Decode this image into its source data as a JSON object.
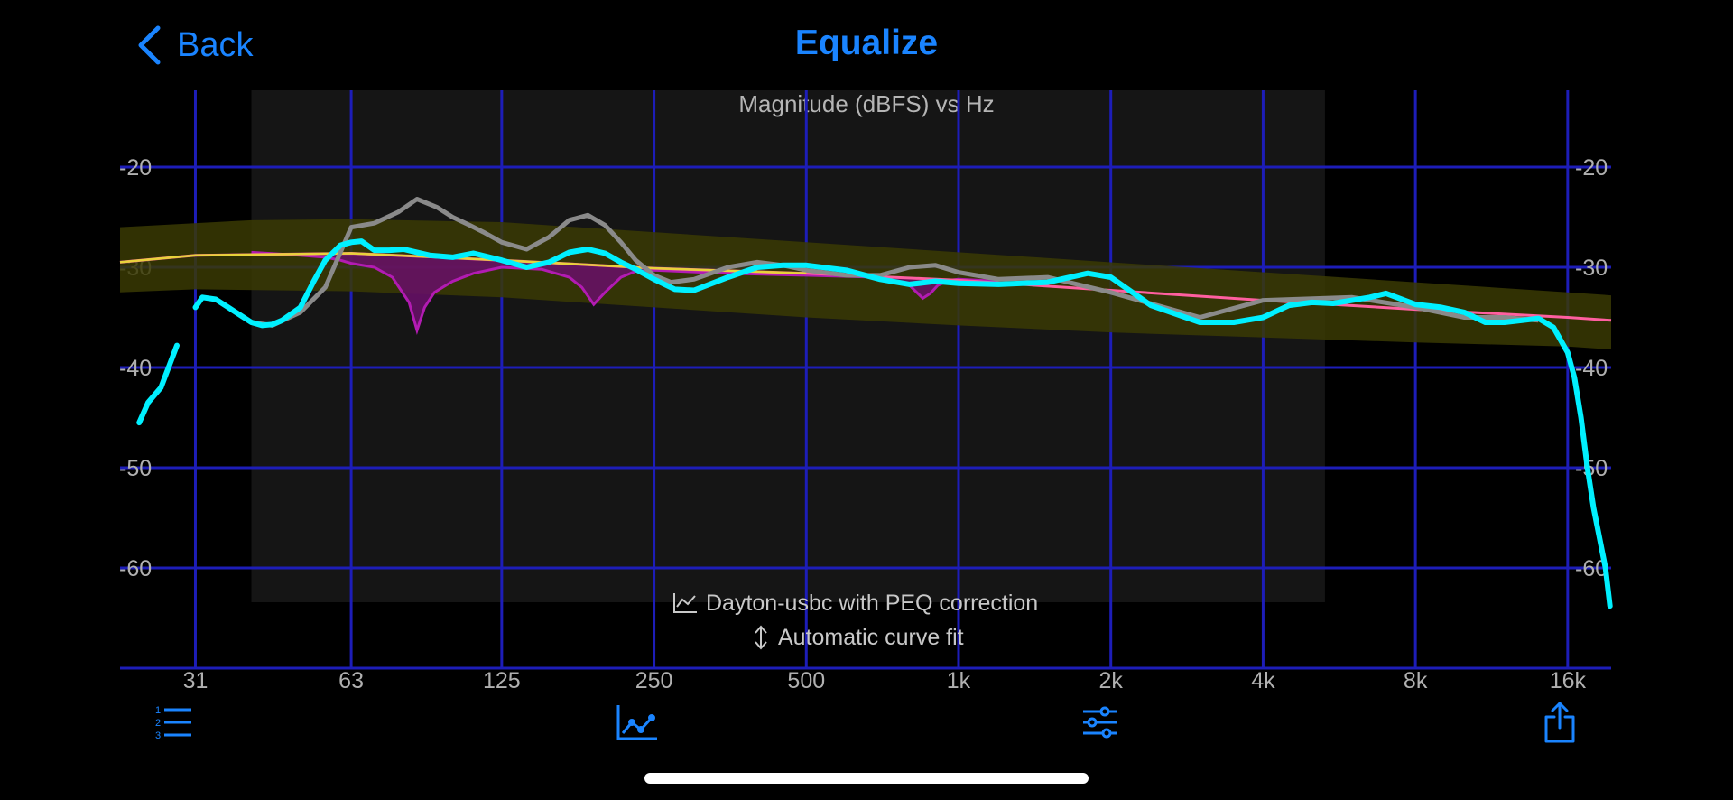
{
  "nav": {
    "back_label": "Back",
    "title": "Equalize"
  },
  "colors": {
    "accent": "#1a84ff",
    "grid": "#1d1db8",
    "band": "#3a3a04",
    "target": "#ff5fa0",
    "target_upper": "#e8d23a",
    "measurement": "#00f0ff",
    "uncorrected": "#8a8a8a",
    "correction": "#b21bb2"
  },
  "chart_data": {
    "type": "line",
    "title": "Magnitude (dBFS) vs Hz",
    "xscale": "log",
    "xlim": [
      22,
      19500
    ],
    "ylim": [
      -70,
      -12
    ],
    "y_ticks": [
      -20,
      -30,
      -40,
      -50,
      -60
    ],
    "y_tick_labels": [
      "-20",
      "-30",
      "-40",
      "-50",
      "-60"
    ],
    "x_ticks": [
      31,
      63,
      125,
      250,
      500,
      1000,
      2000,
      4000,
      8000,
      16000
    ],
    "x_tick_labels": [
      "31",
      "63",
      "125",
      "250",
      "500",
      "1k",
      "2k",
      "4k",
      "8k",
      "16k"
    ],
    "shaded_range_hz": [
      40,
      5300
    ],
    "legend": {
      "line1": "Dayton-usbc with PEQ correction",
      "line2": "Automatic curve fit",
      "position": "bottom-center"
    },
    "series": [
      {
        "key": "target",
        "x": [
          22,
          31,
          63,
          125,
          250,
          500,
          1000,
          2000,
          4000,
          8000,
          16000,
          19500
        ],
        "y": [
          -29.5,
          -28.8,
          -28.6,
          -29.3,
          -30.1,
          -30.6,
          -31.3,
          -32.3,
          -33.3,
          -34.2,
          -35.0,
          -35.3
        ]
      },
      {
        "key": "band_upper",
        "x": [
          22,
          40,
          63,
          125,
          250,
          500,
          1000,
          2000,
          4000,
          8000,
          16000,
          19500
        ],
        "y": [
          -26.0,
          -25.3,
          -25.2,
          -25.5,
          -26.5,
          -27.5,
          -28.5,
          -29.5,
          -30.5,
          -31.5,
          -32.5,
          -32.8
        ]
      },
      {
        "key": "band_lower",
        "x": [
          22,
          31,
          63,
          125,
          250,
          500,
          1000,
          2000,
          4000,
          8000,
          16000,
          19500
        ],
        "y": [
          -32.5,
          -32.2,
          -32.4,
          -33.0,
          -34.0,
          -35.0,
          -35.8,
          -36.5,
          -37.0,
          -37.5,
          -37.9,
          -38.2
        ]
      },
      {
        "key": "uncorrected",
        "x": [
          40,
          44,
          50,
          56,
          60,
          63,
          70,
          78,
          85,
          93,
          100,
          108,
          115,
          125,
          140,
          155,
          170,
          185,
          200,
          215,
          230,
          250,
          270,
          300,
          350,
          400,
          450,
          500,
          600,
          700,
          800,
          900,
          1000,
          1200,
          1500,
          2000,
          3000,
          4000,
          6000,
          8000,
          10000,
          12000,
          14000
        ],
        "y": [
          -35.5,
          -35.8,
          -34.5,
          -32.0,
          -28.5,
          -26.0,
          -25.6,
          -24.5,
          -23.2,
          -24.0,
          -25.0,
          -25.8,
          -26.5,
          -27.5,
          -28.2,
          -27.0,
          -25.3,
          -24.8,
          -25.8,
          -27.5,
          -29.3,
          -30.8,
          -31.5,
          -31.2,
          -30.0,
          -29.5,
          -29.8,
          -30.3,
          -30.8,
          -30.8,
          -30.0,
          -29.8,
          -30.5,
          -31.2,
          -31.0,
          -32.5,
          -35.0,
          -33.3,
          -33.0,
          -34.0,
          -35.0,
          -35.0,
          -35.3
        ]
      },
      {
        "key": "correction",
        "x": [
          40,
          50,
          56,
          60,
          63,
          70,
          76,
          82,
          85,
          88,
          92,
          100,
          110,
          125,
          150,
          170,
          180,
          190,
          200,
          215,
          230,
          250,
          350,
          500,
          700,
          800,
          850,
          880,
          910,
          960,
          1000,
          1200
        ],
        "y": [
          -28.5,
          -28.8,
          -29.0,
          -29.3,
          -29.6,
          -30.0,
          -31.0,
          -33.5,
          -36.3,
          -34.0,
          -32.5,
          -31.4,
          -30.6,
          -30.0,
          -30.2,
          -31.0,
          -32.0,
          -33.7,
          -32.5,
          -31.0,
          -30.4,
          -30.3,
          -30.6,
          -30.8,
          -31.0,
          -31.8,
          -33.1,
          -32.6,
          -31.8,
          -31.3,
          -31.2,
          -31.4
        ]
      },
      {
        "key": "measurement_low",
        "x": [
          24,
          25,
          26.5,
          28.5
        ],
        "y": [
          -45.5,
          -43.5,
          -42.0,
          -37.8
        ]
      },
      {
        "key": "measurement",
        "x": [
          31,
          32,
          34,
          36,
          40,
          42,
          44,
          46,
          50,
          53,
          56,
          60,
          63,
          66,
          70,
          75,
          80,
          90,
          100,
          110,
          125,
          140,
          155,
          170,
          185,
          200,
          215,
          230,
          250,
          275,
          300,
          350,
          400,
          450,
          500,
          600,
          700,
          800,
          900,
          1000,
          1200,
          1500,
          1800,
          2000,
          2400,
          3000,
          3500,
          4000,
          4500,
          5000,
          5500,
          6000,
          6500,
          7000,
          8000,
          9000,
          10000,
          11000,
          12000,
          13000,
          14000,
          15000,
          16000,
          16500,
          17000,
          17500,
          18000,
          19000,
          19400
        ],
        "y": [
          -34.0,
          -33.0,
          -33.2,
          -34.0,
          -35.5,
          -35.8,
          -35.7,
          -35.3,
          -34.0,
          -31.5,
          -29.3,
          -27.8,
          -27.5,
          -27.4,
          -28.3,
          -28.3,
          -28.2,
          -28.8,
          -29.0,
          -28.6,
          -29.3,
          -30.0,
          -29.5,
          -28.5,
          -28.2,
          -28.6,
          -29.5,
          -30.2,
          -31.2,
          -32.2,
          -32.3,
          -31.0,
          -30.0,
          -29.8,
          -29.8,
          -30.3,
          -31.2,
          -31.7,
          -31.4,
          -31.6,
          -31.7,
          -31.5,
          -30.6,
          -31.0,
          -33.8,
          -35.5,
          -35.5,
          -35.0,
          -33.8,
          -33.5,
          -33.6,
          -33.3,
          -33.0,
          -32.6,
          -33.7,
          -34.0,
          -34.5,
          -35.5,
          -35.5,
          -35.3,
          -35.1,
          -36.0,
          -38.5,
          -41.0,
          -45.0,
          -50.0,
          -54.0,
          -60.0,
          -63.8
        ]
      }
    ]
  },
  "toolbar": {
    "items": [
      {
        "name": "list-button",
        "icon": "numbered-list-icon"
      },
      {
        "name": "graph-button",
        "icon": "line-chart-icon"
      },
      {
        "name": "filters-button",
        "icon": "sliders-icon"
      },
      {
        "name": "share-button",
        "icon": "share-icon"
      }
    ]
  }
}
